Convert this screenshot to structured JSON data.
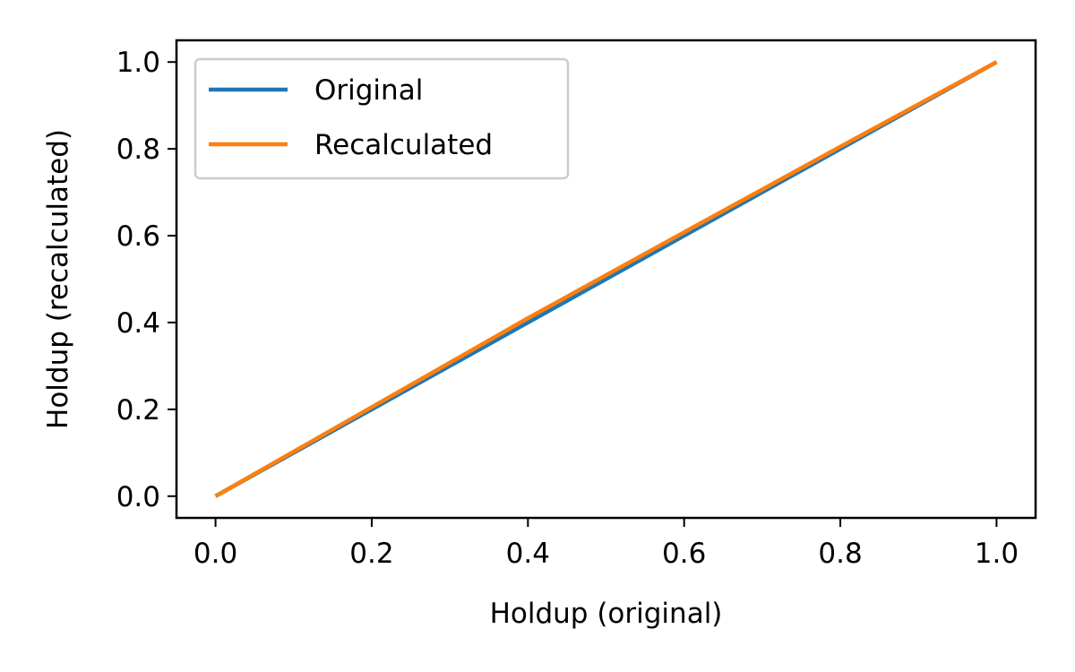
{
  "chart_data": {
    "type": "line",
    "title": "",
    "xlabel": "Holdup (original)",
    "ylabel": "Holdup (recalculated)",
    "xlim": [
      -0.05,
      1.05
    ],
    "ylim": [
      -0.05,
      1.05
    ],
    "xticks": [
      0.0,
      0.2,
      0.4,
      0.6,
      0.8,
      1.0
    ],
    "xtick_labels": [
      "0.0",
      "0.2",
      "0.4",
      "0.6",
      "0.8",
      "1.0"
    ],
    "yticks": [
      0.0,
      0.2,
      0.4,
      0.6,
      0.8,
      1.0
    ],
    "ytick_labels": [
      "0.0",
      "0.2",
      "0.4",
      "0.6",
      "0.8",
      "1.0"
    ],
    "grid": false,
    "legend": {
      "placement": "top-left"
    },
    "series": [
      {
        "name": "Original",
        "color": "#1f77b4",
        "x": [
          0.0,
          0.2,
          0.4,
          0.6,
          0.8,
          1.0
        ],
        "y": [
          0.0,
          0.2,
          0.4,
          0.6,
          0.8,
          1.0
        ]
      },
      {
        "name": "Recalculated",
        "color": "#ff7f0e",
        "x": [
          0.0,
          0.2,
          0.4,
          0.6,
          0.8,
          1.0
        ],
        "y": [
          0.0,
          0.205,
          0.41,
          0.608,
          0.805,
          1.0
        ]
      }
    ]
  }
}
